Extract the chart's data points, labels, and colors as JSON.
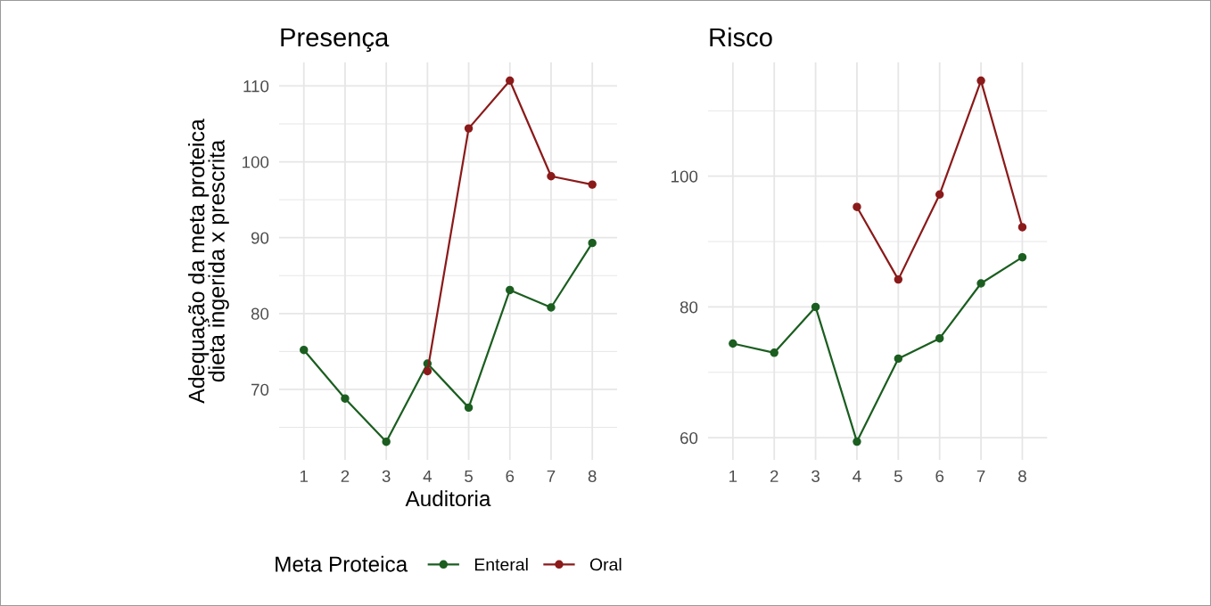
{
  "chart_data": [
    {
      "type": "line",
      "title": "Presença",
      "xlabel": "Auditoria",
      "ylabel": "Adequação da meta proteica\ndieta ingerida x prescrita",
      "legend_title": "Meta Proteica",
      "categories": [
        "1",
        "2",
        "3",
        "4",
        "5",
        "6",
        "7",
        "8"
      ],
      "series": [
        {
          "name": "Enteral",
          "color": "#1b5e20",
          "values": [
            75.2,
            68.8,
            63.1,
            73.4,
            67.6,
            83.1,
            80.8,
            89.3
          ]
        },
        {
          "name": "Oral",
          "color": "#8b1a1a",
          "values": [
            null,
            null,
            null,
            72.4,
            104.4,
            110.7,
            98.1,
            97.0
          ]
        }
      ],
      "ylim": [
        60.7,
        113.1
      ],
      "yticks": [
        70,
        80,
        90,
        100,
        110
      ],
      "grid": true,
      "legend": "bottom",
      "marker": "circle",
      "line_style": "solid"
    },
    {
      "type": "line",
      "title": "Risco",
      "categories": [
        "1",
        "2",
        "3",
        "4",
        "5",
        "6",
        "7",
        "8"
      ],
      "series": [
        {
          "color": "#1b5e20",
          "values": [
            74.4,
            73.0,
            80.0,
            59.4,
            72.1,
            75.2,
            83.6,
            87.6
          ]
        },
        {
          "color": "#8b1a1a",
          "values": [
            null,
            null,
            null,
            95.3,
            84.2,
            97.2,
            114.6,
            92.2
          ]
        }
      ],
      "ylim": [
        56.6,
        117.4
      ],
      "yticks": [
        60,
        80,
        100
      ],
      "grid": true,
      "marker": "circle",
      "line_style": "solid"
    }
  ]
}
